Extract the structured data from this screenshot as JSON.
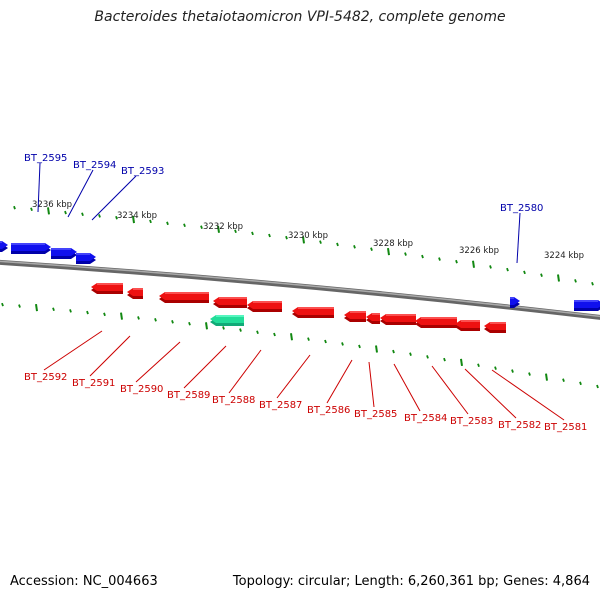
{
  "title": "Bacteroides thetaiotaomicron VPI-5482, complete genome",
  "footer": {
    "accession": "Accession: NC_004663",
    "summary": "Topology: circular; Length: 6,260,361 bp; Genes: 4,864"
  },
  "colors": {
    "forward_gene": "#1010ee",
    "reverse_gene": "#ee1111",
    "highlight_gene": "#22dd99",
    "backbone": "#888888",
    "ticks": "#118811",
    "top_label": "#0000aa",
    "bottom_label": "#cc0000"
  },
  "scale_labels": [
    "3236 kbp",
    "3234 kbp",
    "3232 kbp",
    "3230 kbp",
    "3228 kbp",
    "3226 kbp",
    "3224 kbp"
  ],
  "top_genes": [
    "BT_2595",
    "BT_2594",
    "BT_2593",
    "BT_2580"
  ],
  "bottom_genes": [
    "BT_2592",
    "BT_2591",
    "BT_2590",
    "BT_2589",
    "BT_2588",
    "BT_2587",
    "BT_2586",
    "BT_2585",
    "BT_2584",
    "BT_2583",
    "BT_2582",
    "BT_2581"
  ]
}
